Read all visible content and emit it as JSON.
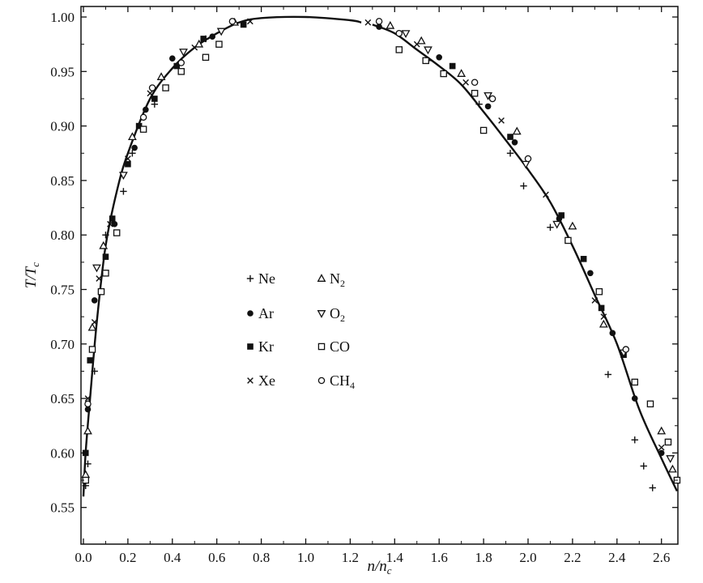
{
  "chart_data": {
    "type": "scatter",
    "title": "",
    "xlabel": {
      "main": "n/n",
      "sub": "c"
    },
    "ylabel": {
      "main": "T/T",
      "sub": "c"
    },
    "xlim": [
      0.0,
      2.7
    ],
    "ylim": [
      0.55,
      1.015
    ],
    "xticks": [
      "0.0",
      "0.2",
      "0.4",
      "0.6",
      "0.8",
      "1.0",
      "1.2",
      "1.4",
      "1.6",
      "1.8",
      "2.0",
      "2.2",
      "2.4",
      "2.6"
    ],
    "yticks": [
      "0.55",
      "0.60",
      "0.65",
      "0.70",
      "0.75",
      "0.80",
      "0.85",
      "0.90",
      "0.95",
      "1.00"
    ],
    "grid": false,
    "legend_position": "center-left",
    "fit_curve": {
      "left": [
        [
          0.0,
          0.56
        ],
        [
          0.01,
          0.6
        ],
        [
          0.03,
          0.65
        ],
        [
          0.06,
          0.72
        ],
        [
          0.1,
          0.79
        ],
        [
          0.15,
          0.84
        ],
        [
          0.2,
          0.875
        ],
        [
          0.3,
          0.925
        ],
        [
          0.4,
          0.953
        ],
        [
          0.5,
          0.972
        ],
        [
          0.6,
          0.985
        ],
        [
          0.7,
          0.995
        ],
        [
          0.8,
          0.999
        ],
        [
          1.0,
          1.0
        ],
        [
          1.2,
          0.997
        ],
        [
          1.25,
          0.995
        ]
      ],
      "right": [
        [
          1.3,
          0.993
        ],
        [
          1.4,
          0.985
        ],
        [
          1.5,
          0.97
        ],
        [
          1.6,
          0.955
        ],
        [
          1.7,
          0.938
        ],
        [
          1.8,
          0.913
        ],
        [
          1.9,
          0.887
        ],
        [
          2.0,
          0.86
        ],
        [
          2.1,
          0.83
        ],
        [
          2.2,
          0.79
        ],
        [
          2.3,
          0.745
        ],
        [
          2.4,
          0.7
        ],
        [
          2.5,
          0.64
        ],
        [
          2.6,
          0.595
        ],
        [
          2.67,
          0.565
        ]
      ]
    },
    "series": [
      {
        "name": "Ne",
        "marker": "plus",
        "points": [
          [
            0.01,
            0.57
          ],
          [
            0.02,
            0.59
          ],
          [
            0.05,
            0.675
          ],
          [
            0.1,
            0.8
          ],
          [
            0.18,
            0.84
          ],
          [
            0.22,
            0.875
          ],
          [
            0.32,
            0.92
          ],
          [
            0.55,
            0.98
          ],
          [
            1.55,
            0.96
          ],
          [
            1.78,
            0.92
          ],
          [
            1.92,
            0.875
          ],
          [
            1.98,
            0.845
          ],
          [
            2.1,
            0.807
          ],
          [
            2.36,
            0.672
          ],
          [
            2.48,
            0.612
          ],
          [
            2.52,
            0.588
          ],
          [
            2.56,
            0.568
          ]
        ]
      },
      {
        "name": "Ar",
        "marker": "dot",
        "points": [
          [
            0.02,
            0.64
          ],
          [
            0.05,
            0.74
          ],
          [
            0.14,
            0.81
          ],
          [
            0.23,
            0.88
          ],
          [
            0.28,
            0.915
          ],
          [
            0.4,
            0.962
          ],
          [
            0.58,
            0.982
          ],
          [
            1.33,
            0.991
          ],
          [
            1.6,
            0.963
          ],
          [
            1.82,
            0.918
          ],
          [
            1.94,
            0.885
          ],
          [
            2.14,
            0.815
          ],
          [
            2.28,
            0.765
          ],
          [
            2.38,
            0.71
          ],
          [
            2.48,
            0.65
          ],
          [
            2.6,
            0.6
          ]
        ]
      },
      {
        "name": "Kr",
        "marker": "square-filled",
        "points": [
          [
            0.01,
            0.6
          ],
          [
            0.03,
            0.685
          ],
          [
            0.1,
            0.78
          ],
          [
            0.13,
            0.815
          ],
          [
            0.2,
            0.865
          ],
          [
            0.25,
            0.9
          ],
          [
            0.32,
            0.925
          ],
          [
            0.42,
            0.955
          ],
          [
            0.54,
            0.98
          ],
          [
            0.72,
            0.993
          ],
          [
            1.66,
            0.955
          ],
          [
            1.92,
            0.89
          ],
          [
            2.15,
            0.818
          ],
          [
            2.25,
            0.778
          ],
          [
            2.33,
            0.733
          ],
          [
            2.43,
            0.69
          ]
        ]
      },
      {
        "name": "Xe",
        "marker": "cross",
        "points": [
          [
            0.02,
            0.65
          ],
          [
            0.05,
            0.72
          ],
          [
            0.07,
            0.76
          ],
          [
            0.12,
            0.81
          ],
          [
            0.2,
            0.87
          ],
          [
            0.3,
            0.93
          ],
          [
            0.5,
            0.972
          ],
          [
            0.75,
            0.996
          ],
          [
            1.28,
            0.995
          ],
          [
            1.5,
            0.975
          ],
          [
            1.72,
            0.94
          ],
          [
            1.88,
            0.905
          ],
          [
            2.08,
            0.837
          ],
          [
            2.3,
            0.74
          ],
          [
            2.34,
            0.725
          ],
          [
            2.6,
            0.605
          ]
        ]
      },
      {
        "name": "N2",
        "marker": "triangle-up",
        "points": [
          [
            0.01,
            0.58
          ],
          [
            0.02,
            0.62
          ],
          [
            0.04,
            0.715
          ],
          [
            0.09,
            0.79
          ],
          [
            0.22,
            0.89
          ],
          [
            0.35,
            0.945
          ],
          [
            0.52,
            0.975
          ],
          [
            0.68,
            0.995
          ],
          [
            1.38,
            0.992
          ],
          [
            1.52,
            0.978
          ],
          [
            1.7,
            0.948
          ],
          [
            1.95,
            0.895
          ],
          [
            2.2,
            0.808
          ],
          [
            2.34,
            0.718
          ],
          [
            2.6,
            0.62
          ],
          [
            2.65,
            0.585
          ]
        ]
      },
      {
        "name": "O2",
        "marker": "triangle-down",
        "points": [
          [
            0.06,
            0.77
          ],
          [
            0.18,
            0.855
          ],
          [
            0.45,
            0.968
          ],
          [
            0.62,
            0.987
          ],
          [
            1.45,
            0.985
          ],
          [
            1.55,
            0.97
          ],
          [
            1.82,
            0.928
          ],
          [
            1.99,
            0.865
          ],
          [
            2.13,
            0.81
          ],
          [
            2.43,
            0.692
          ],
          [
            2.64,
            0.595
          ]
        ]
      },
      {
        "name": "CO",
        "marker": "square-open",
        "points": [
          [
            0.01,
            0.575
          ],
          [
            0.04,
            0.695
          ],
          [
            0.08,
            0.748
          ],
          [
            0.1,
            0.765
          ],
          [
            0.15,
            0.802
          ],
          [
            0.27,
            0.897
          ],
          [
            0.37,
            0.935
          ],
          [
            0.44,
            0.95
          ],
          [
            0.55,
            0.963
          ],
          [
            0.61,
            0.975
          ],
          [
            1.42,
            0.97
          ],
          [
            1.54,
            0.96
          ],
          [
            1.62,
            0.948
          ],
          [
            1.76,
            0.93
          ],
          [
            1.8,
            0.896
          ],
          [
            2.18,
            0.795
          ],
          [
            2.32,
            0.748
          ],
          [
            2.48,
            0.665
          ],
          [
            2.55,
            0.645
          ],
          [
            2.63,
            0.61
          ],
          [
            2.67,
            0.575
          ]
        ]
      },
      {
        "name": "CH4",
        "marker": "circle-open",
        "points": [
          [
            0.02,
            0.645
          ],
          [
            0.27,
            0.908
          ],
          [
            0.31,
            0.935
          ],
          [
            0.44,
            0.958
          ],
          [
            0.67,
            0.996
          ],
          [
            1.33,
            0.996
          ],
          [
            1.42,
            0.985
          ],
          [
            1.76,
            0.94
          ],
          [
            1.84,
            0.925
          ],
          [
            2.0,
            0.87
          ],
          [
            2.44,
            0.695
          ]
        ]
      }
    ],
    "legend": [
      {
        "label": "Ne",
        "sub": "",
        "marker": "plus"
      },
      {
        "label": "Ar",
        "sub": "",
        "marker": "dot"
      },
      {
        "label": "Kr",
        "sub": "",
        "marker": "square-filled"
      },
      {
        "label": "Xe",
        "sub": "",
        "marker": "cross"
      },
      {
        "label": "N",
        "sub": "2",
        "marker": "triangle-up"
      },
      {
        "label": "O",
        "sub": "2",
        "marker": "triangle-down"
      },
      {
        "label": "CO",
        "sub": "",
        "marker": "square-open"
      },
      {
        "label": "CH",
        "sub": "4",
        "marker": "circle-open"
      }
    ]
  }
}
